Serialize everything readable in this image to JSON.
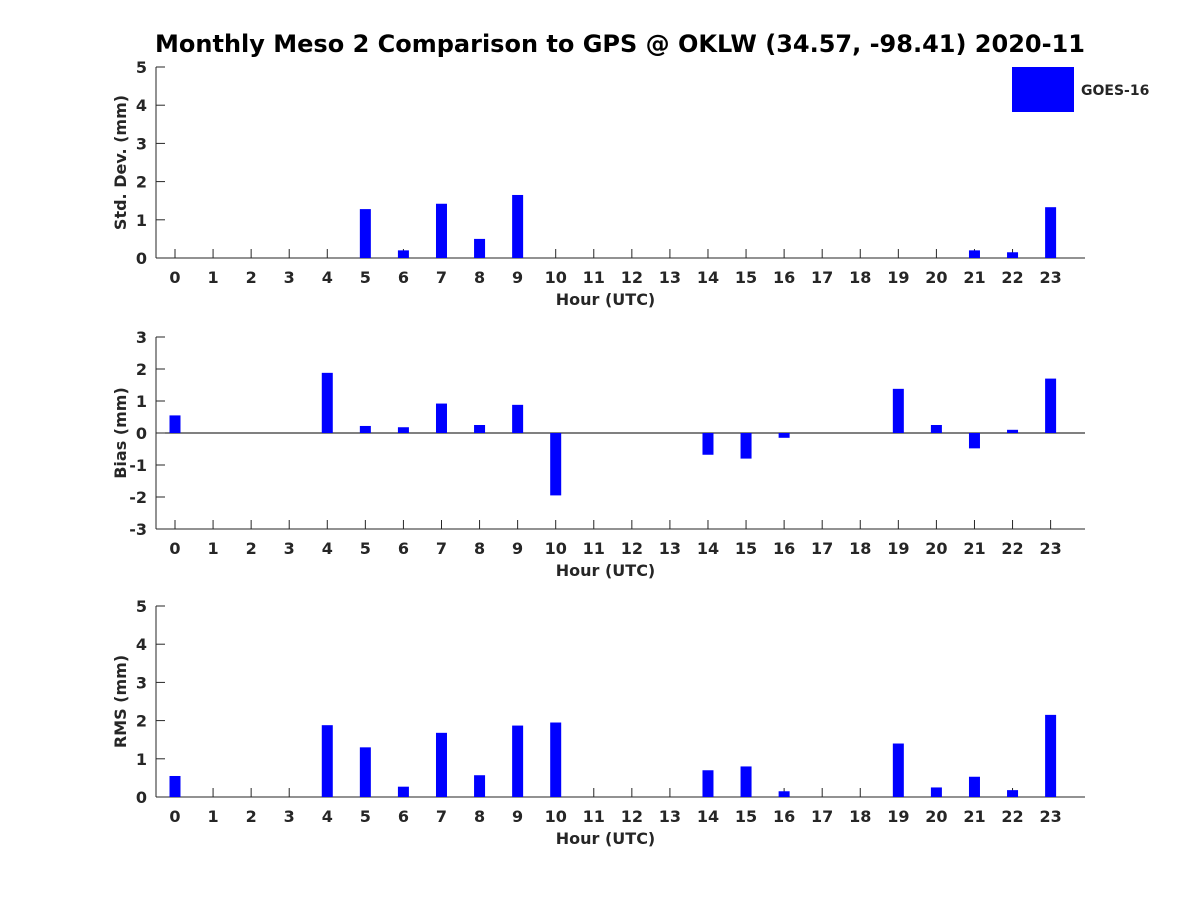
{
  "title": "Monthly Meso 2 Comparison to GPS @ OKLW (34.57, -98.41) 2020-11",
  "colors": {
    "bar": "#0000ff",
    "axis": "#262626"
  },
  "chart_data": [
    {
      "type": "bar",
      "name": "std-dev",
      "xlabel": "Hour (UTC)",
      "ylabel": "Std. Dev. (mm)",
      "ylim": [
        0,
        5
      ],
      "yticks": [
        0,
        1,
        2,
        3,
        4,
        5
      ],
      "categories": [
        "0",
        "1",
        "2",
        "3",
        "4",
        "5",
        "6",
        "7",
        "8",
        "9",
        "10",
        "11",
        "12",
        "13",
        "14",
        "15",
        "16",
        "17",
        "18",
        "19",
        "20",
        "21",
        "22",
        "23"
      ],
      "series": [
        {
          "name": "GOES-16",
          "values": [
            0,
            0,
            0,
            0,
            0,
            1.28,
            0.2,
            1.42,
            0.5,
            1.65,
            0,
            0,
            0,
            0,
            0,
            0,
            0,
            0,
            0,
            0,
            0,
            0.2,
            0.15,
            1.33
          ]
        }
      ],
      "legend": {
        "label": "GOES-16",
        "placement": "top-right"
      }
    },
    {
      "type": "bar",
      "name": "bias",
      "xlabel": "Hour (UTC)",
      "ylabel": "Bias (mm)",
      "ylim": [
        -3,
        3
      ],
      "yticks": [
        -3,
        -2,
        -1,
        0,
        1,
        2,
        3
      ],
      "categories": [
        "0",
        "1",
        "2",
        "3",
        "4",
        "5",
        "6",
        "7",
        "8",
        "9",
        "10",
        "11",
        "12",
        "13",
        "14",
        "15",
        "16",
        "17",
        "18",
        "19",
        "20",
        "21",
        "22",
        "23"
      ],
      "series": [
        {
          "name": "GOES-16",
          "values": [
            0.55,
            0,
            0,
            0,
            1.88,
            0.22,
            0.18,
            0.92,
            0.25,
            0.88,
            -1.95,
            0,
            0,
            0,
            -0.68,
            -0.8,
            -0.15,
            0,
            0,
            1.38,
            0.25,
            -0.48,
            0.1,
            1.7
          ]
        }
      ],
      "zero_line": true
    },
    {
      "type": "bar",
      "name": "rms",
      "xlabel": "Hour (UTC)",
      "ylabel": "RMS (mm)",
      "ylim": [
        0,
        5
      ],
      "yticks": [
        0,
        1,
        2,
        3,
        4,
        5
      ],
      "categories": [
        "0",
        "1",
        "2",
        "3",
        "4",
        "5",
        "6",
        "7",
        "8",
        "9",
        "10",
        "11",
        "12",
        "13",
        "14",
        "15",
        "16",
        "17",
        "18",
        "19",
        "20",
        "21",
        "22",
        "23"
      ],
      "series": [
        {
          "name": "GOES-16",
          "values": [
            0.55,
            0,
            0,
            0,
            1.88,
            1.3,
            0.27,
            1.68,
            0.57,
            1.87,
            1.95,
            0,
            0,
            0,
            0.7,
            0.8,
            0.15,
            0,
            0,
            1.4,
            0.25,
            0.53,
            0.18,
            2.15
          ]
        }
      ]
    }
  ]
}
